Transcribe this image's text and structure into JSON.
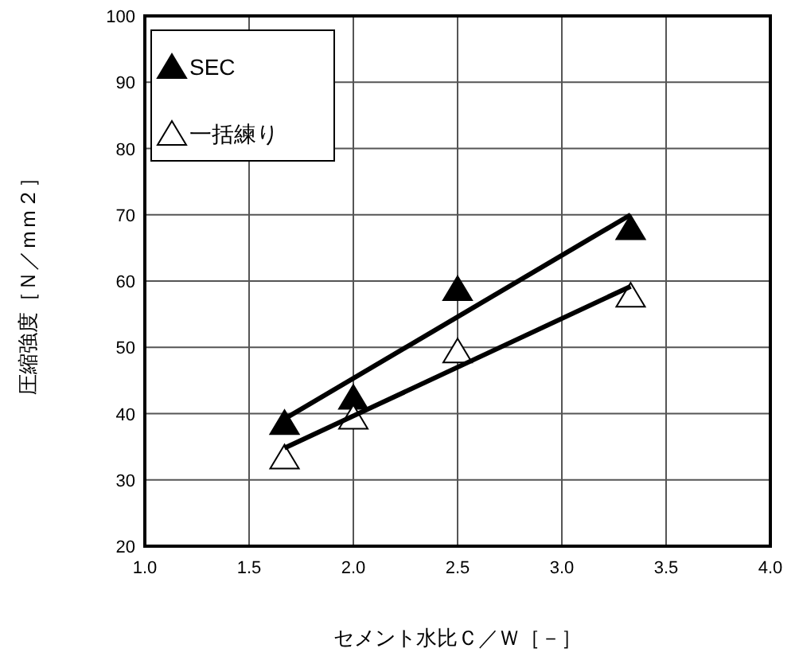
{
  "chart_data": {
    "type": "scatter",
    "xlabel": "セメント水比Ｃ／Ｗ［－］",
    "ylabel": "圧縮強度［Ｎ／ｍｍ２］",
    "xlim": [
      1.0,
      4.0
    ],
    "xticks": [
      {
        "value": 1.0,
        "label": "1.0"
      },
      {
        "value": 1.5,
        "label": "1.5"
      },
      {
        "value": 2.0,
        "label": "2.0"
      },
      {
        "value": 2.5,
        "label": "2.5"
      },
      {
        "value": 3.0,
        "label": "3.0"
      },
      {
        "value": 3.5,
        "label": "3.5"
      },
      {
        "value": 4.0,
        "label": "4.0"
      }
    ],
    "ylim": [
      20,
      100
    ],
    "yticks": [
      20,
      30,
      40,
      50,
      60,
      70,
      80,
      90,
      100
    ],
    "grid": true,
    "legend": "top left",
    "marker": "triangle",
    "series": [
      {
        "name": "SEC",
        "color": "#000000",
        "x": [
          1.67,
          2.0,
          2.5,
          3.33
        ],
        "values": [
          38.6,
          42.4,
          58.8,
          68
        ]
      },
      {
        "name": "一括練り",
        "color": "#ffffff",
        "x": [
          1.67,
          2.0,
          2.5,
          3.33
        ],
        "values": [
          33.4,
          39.4,
          49.4,
          57.8
        ]
      },
      {
        "type": "line",
        "marker": "none",
        "color": "#000000",
        "x": [
          1.67,
          3.33
        ],
        "values": [
          39.2,
          70
        ]
      },
      {
        "type": "line",
        "marker": "none",
        "color": "#000000",
        "x": [
          1.67,
          3.33
        ],
        "values": [
          34.8,
          59.2
        ]
      }
    ]
  }
}
